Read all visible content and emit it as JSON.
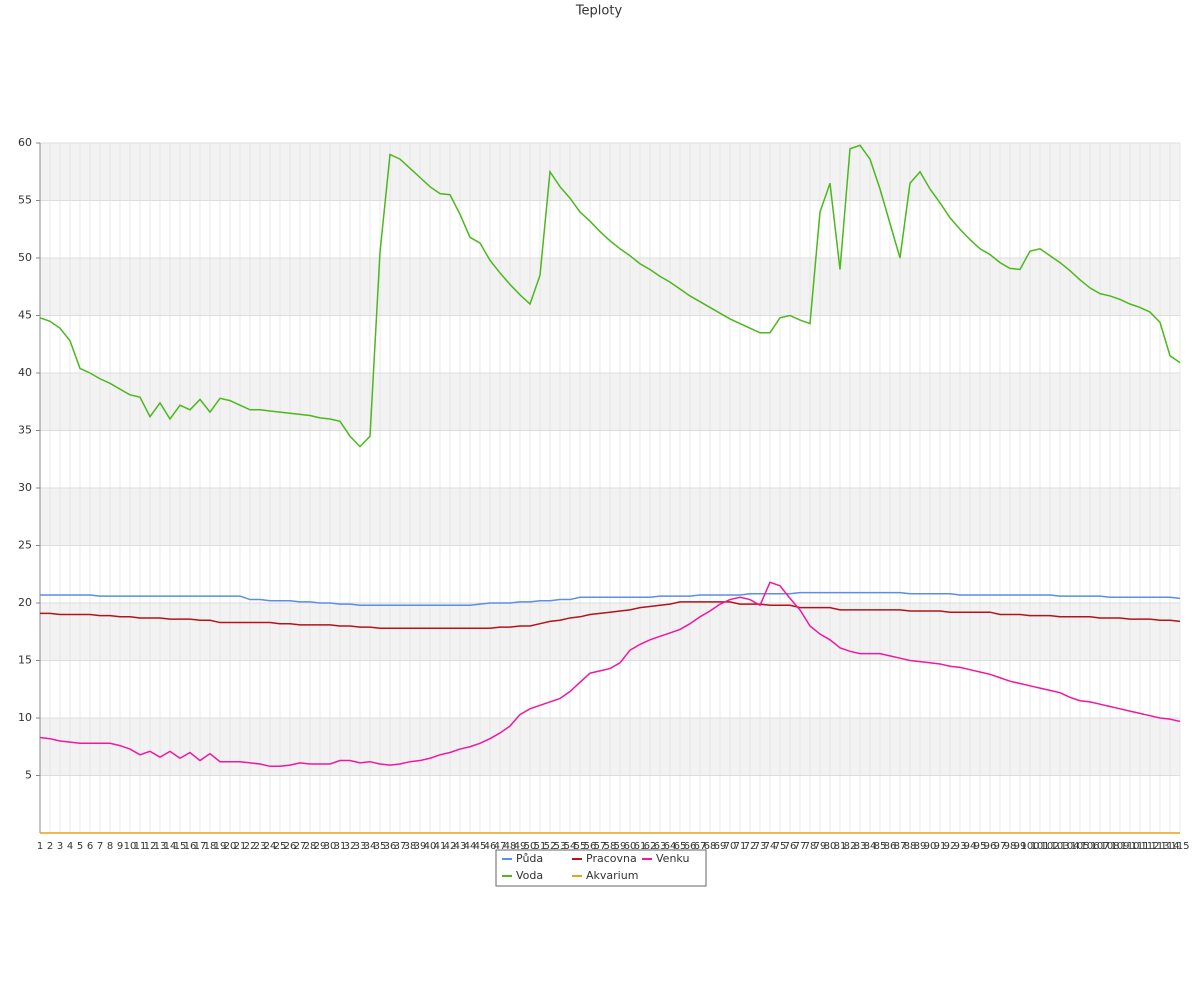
{
  "chart_data": {
    "type": "line",
    "title": "Teploty",
    "categories": [
      1,
      2,
      3,
      4,
      5,
      6,
      7,
      8,
      9,
      10,
      11,
      12,
      13,
      14,
      15,
      16,
      17,
      18,
      19,
      20,
      21,
      22,
      23,
      24,
      25,
      26,
      27,
      28,
      29,
      30,
      31,
      32,
      33,
      34,
      35,
      36,
      37,
      38,
      39,
      40,
      41,
      42,
      43,
      44,
      45,
      46,
      47,
      48,
      49,
      50,
      51,
      52,
      53,
      54,
      55,
      56,
      57,
      58,
      59,
      60,
      61,
      62,
      63,
      64,
      65,
      66,
      67,
      68,
      69,
      70,
      71,
      72,
      73,
      74,
      75,
      76,
      77,
      78,
      79,
      80,
      81,
      82,
      83,
      84,
      85,
      86,
      87,
      88,
      89,
      90,
      91,
      92,
      93,
      94,
      95,
      96,
      97,
      98,
      99,
      100,
      101,
      102,
      103,
      104,
      105,
      106,
      107,
      108,
      109,
      110,
      111,
      112,
      113,
      114,
      115
    ],
    "series": [
      {
        "name": "Půda",
        "color": "#5b8ee6",
        "values": [
          20.7,
          20.7,
          20.7,
          20.7,
          20.7,
          20.7,
          20.6,
          20.6,
          20.6,
          20.6,
          20.6,
          20.6,
          20.6,
          20.6,
          20.6,
          20.6,
          20.6,
          20.6,
          20.6,
          20.6,
          20.6,
          20.3,
          20.3,
          20.2,
          20.2,
          20.2,
          20.1,
          20.1,
          20.0,
          20.0,
          19.9,
          19.9,
          19.8,
          19.8,
          19.8,
          19.8,
          19.8,
          19.8,
          19.8,
          19.8,
          19.8,
          19.8,
          19.8,
          19.8,
          19.9,
          20.0,
          20.0,
          20.0,
          20.1,
          20.1,
          20.2,
          20.2,
          20.3,
          20.3,
          20.5,
          20.5,
          20.5,
          20.5,
          20.5,
          20.5,
          20.5,
          20.5,
          20.6,
          20.6,
          20.6,
          20.6,
          20.7,
          20.7,
          20.7,
          20.7,
          20.7,
          20.8,
          20.8,
          20.8,
          20.8,
          20.8,
          20.9,
          20.9,
          20.9,
          20.9,
          20.9,
          20.9,
          20.9,
          20.9,
          20.9,
          20.9,
          20.9,
          20.8,
          20.8,
          20.8,
          20.8,
          20.8,
          20.7,
          20.7,
          20.7,
          20.7,
          20.7,
          20.7,
          20.7,
          20.7,
          20.7,
          20.7,
          20.6,
          20.6,
          20.6,
          20.6,
          20.6,
          20.5,
          20.5,
          20.5,
          20.5,
          20.5,
          20.5,
          20.5,
          20.4
        ]
      },
      {
        "name": "Voda",
        "color": "#4cb81c",
        "values": [
          44.8,
          44.5,
          43.9,
          42.8,
          40.4,
          40.0,
          39.5,
          39.1,
          38.6,
          38.1,
          37.9,
          36.2,
          37.4,
          36.0,
          37.2,
          36.8,
          37.7,
          36.6,
          37.8,
          37.6,
          37.2,
          36.8,
          36.8,
          36.7,
          36.6,
          36.5,
          36.4,
          36.3,
          36.1,
          36.0,
          35.8,
          34.5,
          33.6,
          34.5,
          50.5,
          59.0,
          58.6,
          57.8,
          57.0,
          56.2,
          55.6,
          55.5,
          53.8,
          51.8,
          51.3,
          49.8,
          48.7,
          47.7,
          46.8,
          46.0,
          48.5,
          57.5,
          56.2,
          55.2,
          54.0,
          53.2,
          52.3,
          51.5,
          50.8,
          50.2,
          49.5,
          49.0,
          48.4,
          47.9,
          47.3,
          46.7,
          46.2,
          45.7,
          45.2,
          44.7,
          44.3,
          43.9,
          43.5,
          43.5,
          44.8,
          45.0,
          44.6,
          44.3,
          54.0,
          56.5,
          49.0,
          59.5,
          59.8,
          58.6,
          56.0,
          53.0,
          50.0,
          56.5,
          57.5,
          56.0,
          54.8,
          53.5,
          52.5,
          51.6,
          50.8,
          50.3,
          49.6,
          49.1,
          49.0,
          50.6,
          50.8,
          50.2,
          49.6,
          48.9,
          48.1,
          47.4,
          46.9,
          46.7,
          46.4,
          46.0,
          45.7,
          45.3,
          44.4,
          41.5,
          40.9
        ]
      },
      {
        "name": "Pracovna",
        "color": "#b5121b",
        "values": [
          19.1,
          19.1,
          19.0,
          19.0,
          19.0,
          19.0,
          18.9,
          18.9,
          18.8,
          18.8,
          18.7,
          18.7,
          18.7,
          18.6,
          18.6,
          18.6,
          18.5,
          18.5,
          18.3,
          18.3,
          18.3,
          18.3,
          18.3,
          18.3,
          18.2,
          18.2,
          18.1,
          18.1,
          18.1,
          18.1,
          18.0,
          18.0,
          17.9,
          17.9,
          17.8,
          17.8,
          17.8,
          17.8,
          17.8,
          17.8,
          17.8,
          17.8,
          17.8,
          17.8,
          17.8,
          17.8,
          17.9,
          17.9,
          18.0,
          18.0,
          18.2,
          18.4,
          18.5,
          18.7,
          18.8,
          19.0,
          19.1,
          19.2,
          19.3,
          19.4,
          19.6,
          19.7,
          19.8,
          19.9,
          20.1,
          20.1,
          20.1,
          20.1,
          20.1,
          20.1,
          19.9,
          19.9,
          19.9,
          19.8,
          19.8,
          19.8,
          19.6,
          19.6,
          19.6,
          19.6,
          19.4,
          19.4,
          19.4,
          19.4,
          19.4,
          19.4,
          19.4,
          19.3,
          19.3,
          19.3,
          19.3,
          19.2,
          19.2,
          19.2,
          19.2,
          19.2,
          19.0,
          19.0,
          19.0,
          18.9,
          18.9,
          18.9,
          18.8,
          18.8,
          18.8,
          18.8,
          18.7,
          18.7,
          18.7,
          18.6,
          18.6,
          18.6,
          18.5,
          18.5,
          18.4
        ]
      },
      {
        "name": "Akvarium",
        "color": "#e8a317",
        "values": [
          0,
          0,
          0,
          0,
          0,
          0,
          0,
          0,
          0,
          0,
          0,
          0,
          0,
          0,
          0,
          0,
          0,
          0,
          0,
          0,
          0,
          0,
          0,
          0,
          0,
          0,
          0,
          0,
          0,
          0,
          0,
          0,
          0,
          0,
          0,
          0,
          0,
          0,
          0,
          0,
          0,
          0,
          0,
          0,
          0,
          0,
          0,
          0,
          0,
          0,
          0,
          0,
          0,
          0,
          0,
          0,
          0,
          0,
          0,
          0,
          0,
          0,
          0,
          0,
          0,
          0,
          0,
          0,
          0,
          0,
          0,
          0,
          0,
          0,
          0,
          0,
          0,
          0,
          0,
          0,
          0,
          0,
          0,
          0,
          0,
          0,
          0,
          0,
          0,
          0,
          0,
          0,
          0,
          0,
          0,
          0,
          0,
          0,
          0,
          0,
          0,
          0,
          0,
          0,
          0,
          0,
          0,
          0,
          0,
          0,
          0,
          0,
          0,
          0,
          0
        ]
      },
      {
        "name": "Venku",
        "color": "#f0189c",
        "values": [
          8.3,
          8.2,
          8.0,
          7.9,
          7.8,
          7.8,
          7.8,
          7.8,
          7.6,
          7.3,
          6.8,
          7.1,
          6.6,
          7.1,
          6.5,
          7.0,
          6.3,
          6.9,
          6.2,
          6.2,
          6.2,
          6.1,
          6.0,
          5.8,
          5.8,
          5.9,
          6.1,
          6.0,
          6.0,
          6.0,
          6.3,
          6.3,
          6.1,
          6.2,
          6.0,
          5.9,
          6.0,
          6.2,
          6.3,
          6.5,
          6.8,
          7.0,
          7.3,
          7.5,
          7.8,
          8.2,
          8.7,
          9.3,
          10.3,
          10.8,
          11.1,
          11.4,
          11.7,
          12.3,
          13.1,
          13.9,
          14.1,
          14.3,
          14.8,
          15.9,
          16.4,
          16.8,
          17.1,
          17.4,
          17.7,
          18.2,
          18.8,
          19.3,
          19.9,
          20.3,
          20.5,
          20.3,
          19.8,
          21.8,
          21.5,
          20.4,
          19.4,
          18.0,
          17.3,
          16.8,
          16.1,
          15.8,
          15.6,
          15.6,
          15.6,
          15.4,
          15.2,
          15.0,
          14.9,
          14.8,
          14.7,
          14.5,
          14.4,
          14.2,
          14.0,
          13.8,
          13.5,
          13.2,
          13.0,
          12.8,
          12.6,
          12.4,
          12.2,
          11.8,
          11.5,
          11.4,
          11.2,
          11.0,
          10.8,
          10.6,
          10.4,
          10.2,
          10.0,
          9.9,
          9.7
        ]
      }
    ],
    "ylim": [
      0,
      60
    ],
    "yticks": [
      5,
      10,
      15,
      20,
      25,
      30,
      35,
      40,
      45,
      50,
      55,
      60
    ],
    "grid": true,
    "legend": "bottom"
  }
}
